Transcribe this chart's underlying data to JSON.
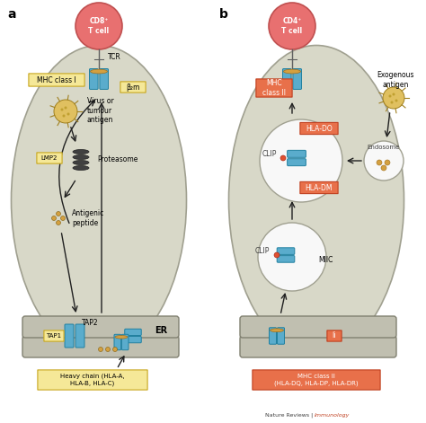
{
  "title": "",
  "bg_color": "#f5f5f0",
  "cell_bg": "#d8d8c8",
  "er_bg": "#b8b8a8",
  "panel_a_label": "a",
  "panel_b_label": "b",
  "t_cell_a_label": "CD8⁺\nT cell",
  "t_cell_b_label": "CD4⁺\nT cell",
  "t_cell_color": "#e87070",
  "t_cell_border": "#c85050",
  "mhc1_box_label": "MHC class I",
  "beta2m_label": "β₂m",
  "lmp2_box_label": "LMP2",
  "tap1_box_label": "TAP1",
  "tap2_label": "TAP2",
  "heavy_chain_box": "Heavy chain (HLA-A,\nHLA-B, HLA-C)",
  "virus_label": "Virus or\ntumour\nantigen",
  "proteasome_label": "Proteasome",
  "antigenic_label": "Antigenic\npeptide",
  "er_label": "ER",
  "tcr_label": "TCR",
  "mhc2_box_label": "MHC\nclass II",
  "mhc2_box_color": "#e8704a",
  "mhc2_border": "#c04020",
  "mhc2_text_color": "#ffffff",
  "hla_do_label": "HLA-DO",
  "hla_do_color": "#e8704a",
  "hla_do_border": "#c04020",
  "hla_dm_label": "HLA-DM",
  "hla_dm_color": "#e8704a",
  "hla_dm_border": "#c04020",
  "clip_label": "CLIP",
  "miic_label": "MIIC",
  "endosome_label": "Endosome",
  "exogenous_label": "Exogenous\nantigen",
  "ii_label": "Ii",
  "ii_color": "#e8704a",
  "ii_border": "#c04020",
  "mhc2_bottom_box": "MHC class II\n(HLA-DQ, HLA-DP, HLA-DR)",
  "mhc2_bottom_color": "#e8704a",
  "mhc2_bottom_border": "#c04020",
  "nature_reviews": "Nature Reviews | Immunology",
  "mhc_color": "#5aaccc",
  "mhc_dark": "#2080a0",
  "arrow_color": "#202020",
  "peptide_color": "#d4a040",
  "yellow_box_fc": "#f5e898",
  "yellow_box_ec": "#c8a820",
  "white_circle": "#f8f8f8"
}
